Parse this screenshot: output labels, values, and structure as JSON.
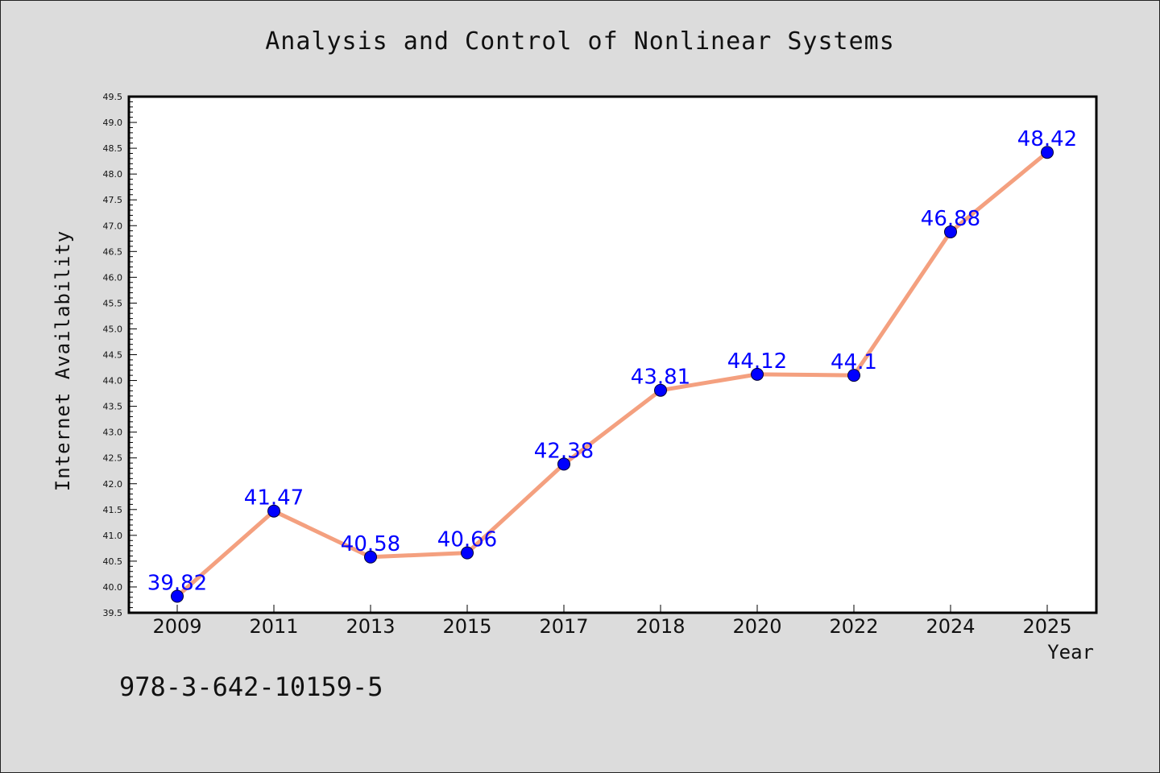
{
  "chart_data": {
    "type": "line",
    "title": "Analysis and Control of Nonlinear Systems",
    "xlabel": "Year",
    "ylabel": "Internet Availability",
    "annotation": "978-3-642-10159-5",
    "categories": [
      "2009",
      "2011",
      "2013",
      "2015",
      "2017",
      "2018",
      "2020",
      "2022",
      "2024",
      "2025"
    ],
    "series": [
      {
        "values": [
          39.82,
          41.47,
          40.58,
          40.66,
          42.38,
          43.81,
          44.12,
          44.1,
          46.88,
          48.42
        ],
        "data_labels": [
          "39.82",
          "41.47",
          "40.58",
          "40.66",
          "42.38",
          "43.81",
          "44.12",
          "44.1",
          "46.88",
          "48.42"
        ]
      }
    ],
    "ylim": [
      39.5,
      49.5
    ],
    "yticks": [
      "39.5",
      "40.0",
      "40.5",
      "41.0",
      "41.5",
      "42.0",
      "42.5",
      "43.0",
      "43.5",
      "44.0",
      "44.5",
      "45.0",
      "45.5",
      "46.0",
      "46.5",
      "47.0",
      "47.5",
      "48.0",
      "48.5",
      "49.0",
      "49.5"
    ],
    "grid": false,
    "legend": "none",
    "colors": {
      "line": "#f4a07f",
      "marker": "#0000ff",
      "label": "#0000ff",
      "background": "#dcdcdc",
      "plot_background": "#ffffff"
    }
  }
}
